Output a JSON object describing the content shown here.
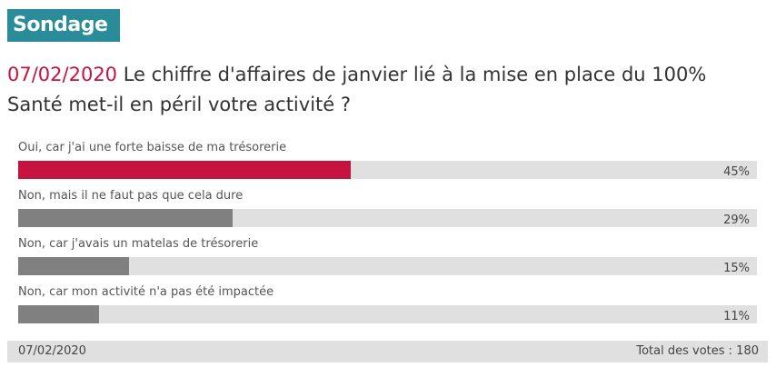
{
  "poll": {
    "badge_label": "Sondage",
    "question_date": "07/02/2020",
    "question_text": " Le chiffre d'affaires de janvier lié à la mise en place du 100% Santé met-il en péril votre activité ?",
    "options": [
      {
        "label": "Oui, car j'ai une forte baisse de ma trésorerie",
        "percent_label": "45%",
        "percent": 45,
        "highlight": true
      },
      {
        "label": "Non, mais il ne faut pas que cela dure",
        "percent_label": "29%",
        "percent": 29,
        "highlight": false
      },
      {
        "label": "Non, car j'avais un matelas de trésorerie",
        "percent_label": "15%",
        "percent": 15,
        "highlight": false
      },
      {
        "label": "Non, car mon activité n'a pas été impactée",
        "percent_label": "11%",
        "percent": 11,
        "highlight": false
      }
    ],
    "footer_date": "07/02/2020",
    "footer_total": "Total des votes : 180"
  },
  "colors": {
    "brand": "#2a8c99",
    "highlight": "#c4143f",
    "bar": "#808080",
    "track": "#e0e0e0"
  }
}
